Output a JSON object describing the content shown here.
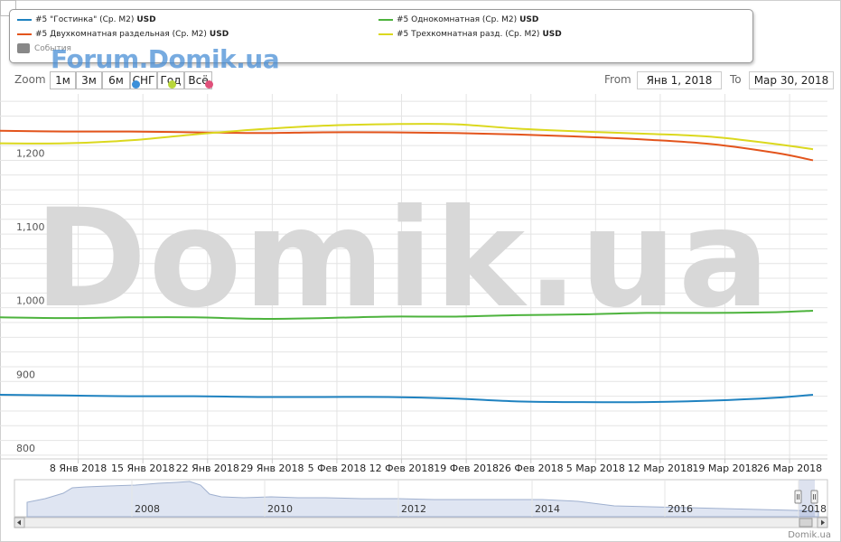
{
  "watermark": {
    "small": "Forum.Domik.ua",
    "big": "Domik.ua",
    "credit": "Domik.ua"
  },
  "legend": {
    "items": [
      {
        "label": "#5 \"Гостинка\" (Ср. М2)",
        "currency": "USD",
        "color": "#1f82c0"
      },
      {
        "label": "#5 Однокомнатная (Ср. М2)",
        "currency": "USD",
        "color": "#4db33d"
      },
      {
        "label": "#5 Двухкомнатная раздельная (Ср. М2)",
        "currency": "USD",
        "color": "#e3541c"
      },
      {
        "label": "#5 Трехкомнатная разд. (Ср. М2)",
        "currency": "USD",
        "color": "#dbd81e"
      }
    ],
    "events_label": "События"
  },
  "toolbar": {
    "zoom_label": "Zoom",
    "buttons": [
      "1м",
      "3м",
      "6м",
      "СНГ",
      "Год",
      "Всё"
    ],
    "event_dot_colors": [
      "#3b8fd9",
      "#b8d63a",
      "#e0507a"
    ],
    "from_label": "From",
    "from_value": "Янв 1, 2018",
    "to_label": "To",
    "to_value": "Мар 30, 2018"
  },
  "chart_data": {
    "type": "line",
    "x": [
      "Янв 1",
      "Янв 8",
      "Янв 15",
      "Янв 22",
      "Янв 29",
      "Фев 5",
      "Фев 12",
      "Фев 19",
      "Фев 26",
      "Мар 5",
      "Мар 12",
      "Мар 19",
      "Мар 26",
      "Мар 30"
    ],
    "x_tick_labels": [
      "8 Янв 2018",
      "15 Янв 2018",
      "22 Янв 2018",
      "29 Янв 2018",
      "5 Фев 2018",
      "12 Фев 2018",
      "19 Фев 2018",
      "26 Фев 2018",
      "5 Мар 2018",
      "12 Мар 2018",
      "19 Мар 2018",
      "26 Мар 2018"
    ],
    "y_ticks": [
      800,
      900,
      1000,
      1100,
      1200
    ],
    "y_tick_labels": [
      "800",
      "900",
      "1,000",
      "1,100",
      "1,200"
    ],
    "ylim": [
      795,
      1290
    ],
    "grid": true,
    "series": [
      {
        "name": "#5 \"Гостинка\" (Ср. М2) USD",
        "color": "#1f82c0",
        "values": [
          882,
          881,
          880,
          880,
          879,
          879,
          879,
          877,
          873,
          872,
          872,
          874,
          878,
          882
        ]
      },
      {
        "name": "#5 Однокомнатная (Ср. М2) USD",
        "color": "#4db33d",
        "values": [
          987,
          986,
          987,
          987,
          985,
          986,
          988,
          988,
          990,
          991,
          993,
          993,
          994,
          996
        ]
      },
      {
        "name": "#5 Двухкомнатная раздельная (Ср. М2) USD",
        "color": "#e3541c",
        "values": [
          1240,
          1239,
          1239,
          1238,
          1237,
          1238,
          1238,
          1237,
          1235,
          1232,
          1228,
          1222,
          1210,
          1200
        ]
      },
      {
        "name": "#5 Трехкомнатная разд. (Ср. М2) USD",
        "color": "#dbd81e",
        "values": [
          1223,
          1223,
          1227,
          1235,
          1242,
          1247,
          1249,
          1249,
          1243,
          1239,
          1236,
          1232,
          1222,
          1215
        ]
      }
    ]
  },
  "navigator": {
    "year_labels": [
      "2008",
      "2010",
      "2012",
      "2014",
      "2016",
      "2018"
    ]
  }
}
